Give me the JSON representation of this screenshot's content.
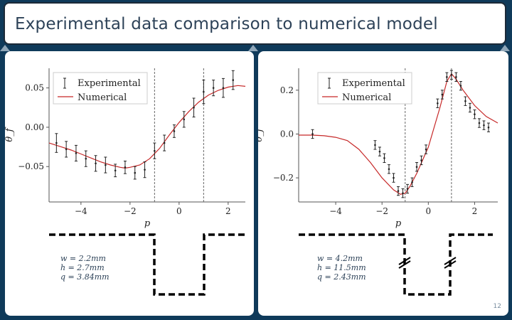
{
  "slide": {
    "title": "Experimental data comparison to numerical model",
    "page_number": "12"
  },
  "left": {
    "legend": {
      "experimental": "Experimental",
      "numerical": "Numerical"
    },
    "ylabel": "θ_f",
    "xlabel": "p",
    "x_ticks": [
      "−4",
      "−2",
      "0",
      "2"
    ],
    "y_ticks": [
      "0.05",
      "0.00",
      "−0.05"
    ],
    "params": [
      "w = 2.2mm",
      "h = 2.7mm",
      "q = 3.84mm"
    ]
  },
  "right": {
    "legend": {
      "experimental": "Experimental",
      "numerical": "Numerical"
    },
    "ylabel": "θ_f",
    "xlabel": "p",
    "x_ticks": [
      "−4",
      "−2",
      "0",
      "2"
    ],
    "y_ticks": [
      "0.2",
      "0.0",
      "−0.2"
    ],
    "params": [
      "w = 4.2mm",
      "h = 11.5mm",
      "q = 2.43mm"
    ]
  },
  "chart_data": [
    {
      "type": "scatter",
      "xlabel": "p",
      "ylabel": "θf",
      "xlim": [
        -5.3,
        2.7
      ],
      "ylim": [
        -0.095,
        0.075
      ],
      "vlines": [
        -1.0,
        1.0
      ],
      "series": [
        {
          "name": "Experimental",
          "x": [
            -5.0,
            -4.6,
            -4.2,
            -3.8,
            -3.4,
            -3.0,
            -2.6,
            -2.2,
            -1.8,
            -1.4,
            -1.0,
            -0.6,
            -0.2,
            0.2,
            0.6,
            1.0,
            1.4,
            1.8,
            2.2
          ],
          "y": [
            -0.02,
            -0.028,
            -0.033,
            -0.04,
            -0.046,
            -0.048,
            -0.055,
            -0.051,
            -0.058,
            -0.054,
            -0.03,
            -0.02,
            -0.005,
            0.01,
            0.025,
            0.045,
            0.05,
            0.05,
            0.06
          ],
          "err": [
            0.012,
            0.01,
            0.01,
            0.01,
            0.01,
            0.01,
            0.008,
            0.008,
            0.008,
            0.01,
            0.01,
            0.01,
            0.008,
            0.01,
            0.012,
            0.015,
            0.01,
            0.012,
            0.012
          ]
        },
        {
          "name": "Numerical",
          "x": [
            -5.3,
            -4.8,
            -4.4,
            -4.0,
            -3.6,
            -3.2,
            -2.8,
            -2.4,
            -2.2,
            -2.0,
            -1.6,
            -1.2,
            -0.8,
            -0.4,
            0.0,
            0.4,
            0.8,
            1.2,
            1.6,
            2.0,
            2.4,
            2.7
          ],
          "y": [
            -0.02,
            -0.025,
            -0.029,
            -0.034,
            -0.039,
            -0.044,
            -0.048,
            -0.051,
            -0.052,
            -0.051,
            -0.048,
            -0.04,
            -0.027,
            -0.01,
            0.006,
            0.02,
            0.032,
            0.041,
            0.047,
            0.051,
            0.053,
            0.052
          ]
        }
      ]
    },
    {
      "type": "scatter",
      "xlabel": "p",
      "ylabel": "θf",
      "xlim": [
        -5.6,
        3.0
      ],
      "ylim": [
        -0.31,
        0.3
      ],
      "vlines": [
        -1.0,
        1.0
      ],
      "series": [
        {
          "name": "Experimental",
          "x": [
            -5.0,
            -2.3,
            -2.1,
            -1.9,
            -1.7,
            -1.5,
            -1.3,
            -1.1,
            -0.9,
            -0.7,
            -0.5,
            -0.3,
            -0.1,
            0.4,
            0.6,
            0.8,
            1.0,
            1.2,
            1.4,
            1.6,
            1.8,
            2.0,
            2.2,
            2.4,
            2.6
          ],
          "y": [
            0.0,
            -0.05,
            -0.08,
            -0.11,
            -0.16,
            -0.2,
            -0.26,
            -0.27,
            -0.25,
            -0.22,
            -0.15,
            -0.12,
            -0.07,
            0.14,
            0.18,
            0.26,
            0.27,
            0.26,
            0.22,
            0.15,
            0.12,
            0.09,
            0.05,
            0.04,
            0.03
          ],
          "err": [
            0.02,
            0.02,
            0.02,
            0.02,
            0.02,
            0.02,
            0.02,
            0.02,
            0.02,
            0.02,
            0.02,
            0.02,
            0.02,
            0.02,
            0.02,
            0.02,
            0.02,
            0.02,
            0.02,
            0.02,
            0.02,
            0.02,
            0.02,
            0.02,
            0.02
          ]
        },
        {
          "name": "Numerical",
          "x": [
            -5.6,
            -5.0,
            -4.5,
            -4.0,
            -3.5,
            -3.0,
            -2.5,
            -2.0,
            -1.5,
            -1.2,
            -1.0,
            -0.8,
            -0.5,
            0.0,
            0.5,
            0.8,
            1.0,
            1.2,
            1.5,
            2.0,
            2.5,
            3.0
          ],
          "y": [
            -0.005,
            -0.005,
            -0.008,
            -0.015,
            -0.03,
            -0.07,
            -0.13,
            -0.2,
            -0.255,
            -0.275,
            -0.27,
            -0.24,
            -0.18,
            -0.06,
            0.12,
            0.24,
            0.275,
            0.25,
            0.2,
            0.13,
            0.08,
            0.05
          ]
        }
      ]
    }
  ]
}
